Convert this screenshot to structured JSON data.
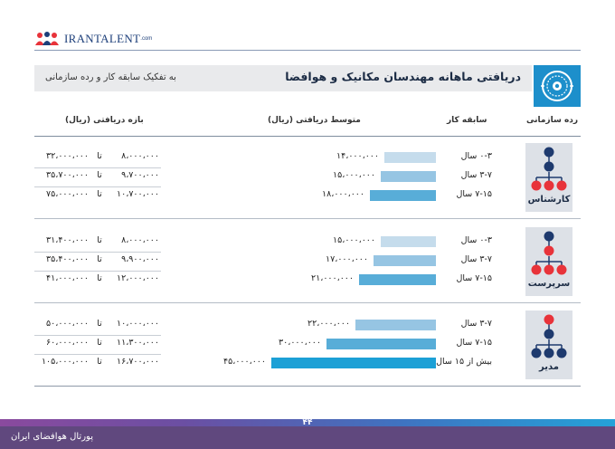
{
  "logo": {
    "text": "IRANTALENT",
    "domain": ".com"
  },
  "title": "دریافتی ماهانه مهندسان مکانیک و هوافضا",
  "subtitle": "به تفکیک سابقه کار و رده سازمانی",
  "title_icon": "turbine-icon",
  "headers": {
    "level": "رده سازمانی",
    "experience": "سابقه کار",
    "average": "متوسط دریافتی (ریال)",
    "range": "بازه دریافتی (ریال)"
  },
  "range_separator": "تا",
  "colors": {
    "light": "#c5dcec",
    "medium": "#96c5e3",
    "dark": "#58add8",
    "strong": "#1ca0d6",
    "navy": "#1e3a6e",
    "red": "#e8333a",
    "accent": "#1d8fcb"
  },
  "chart_data": {
    "type": "bar",
    "orientation": "horizontal",
    "title": "دریافتی ماهانه مهندسان مکانیک و هوافضا",
    "subtitle": "به تفکیک سابقه کار و رده سازمانی",
    "groups": [
      {
        "level": "کارشناس",
        "icon": "org-chart-expert-icon",
        "rows": [
          {
            "experience": "۰-۳ سال",
            "average": 14000000,
            "average_label": "۱۴،۰۰۰،۰۰۰",
            "min": 8000000,
            "min_label": "۸،۰۰۰،۰۰۰",
            "max": 32000000,
            "max_label": "۳۲،۰۰۰،۰۰۰",
            "shade": "light"
          },
          {
            "experience": "۳-۷ سال",
            "average": 15000000,
            "average_label": "۱۵،۰۰۰،۰۰۰",
            "min": 9700000,
            "min_label": "۹،۷۰۰،۰۰۰",
            "max": 35700000,
            "max_label": "۳۵،۷۰۰،۰۰۰",
            "shade": "medium"
          },
          {
            "experience": "۷-۱۵ سال",
            "average": 18000000,
            "average_label": "۱۸،۰۰۰،۰۰۰",
            "min": 10700000,
            "min_label": "۱۰،۷۰۰،۰۰۰",
            "max": 75000000,
            "max_label": "۷۵،۰۰۰،۰۰۰",
            "shade": "dark"
          }
        ]
      },
      {
        "level": "سرپرست",
        "icon": "org-chart-supervisor-icon",
        "rows": [
          {
            "experience": "۰-۳ سال",
            "average": 15000000,
            "average_label": "۱۵،۰۰۰،۰۰۰",
            "min": 8000000,
            "min_label": "۸،۰۰۰،۰۰۰",
            "max": 31400000,
            "max_label": "۳۱،۴۰۰،۰۰۰",
            "shade": "light"
          },
          {
            "experience": "۳-۷ سال",
            "average": 17000000,
            "average_label": "۱۷،۰۰۰،۰۰۰",
            "min": 9900000,
            "min_label": "۹،۹۰۰،۰۰۰",
            "max": 35400000,
            "max_label": "۳۵،۴۰۰،۰۰۰",
            "shade": "medium"
          },
          {
            "experience": "۷-۱۵ سال",
            "average": 21000000,
            "average_label": "۲۱،۰۰۰،۰۰۰",
            "min": 12000000,
            "min_label": "۱۲،۰۰۰،۰۰۰",
            "max": 41000000,
            "max_label": "۴۱،۰۰۰،۰۰۰",
            "shade": "dark"
          }
        ]
      },
      {
        "level": "مدیر",
        "icon": "org-chart-manager-icon",
        "rows": [
          {
            "experience": "۳-۷ سال",
            "average": 22000000,
            "average_label": "۲۲،۰۰۰،۰۰۰",
            "min": 10000000,
            "min_label": "۱۰،۰۰۰،۰۰۰",
            "max": 50000000,
            "max_label": "۵۰،۰۰۰،۰۰۰",
            "shade": "medium"
          },
          {
            "experience": "۷-۱۵ سال",
            "average": 30000000,
            "average_label": "۳۰،۰۰۰،۰۰۰",
            "min": 11300000,
            "min_label": "۱۱،۳۰۰،۰۰۰",
            "max": 60000000,
            "max_label": "۶۰،۰۰۰،۰۰۰",
            "shade": "dark"
          },
          {
            "experience": "بیش از ۱۵ سال",
            "average": 45000000,
            "average_label": "۴۵،۰۰۰،۰۰۰",
            "min": 16700000,
            "min_label": "۱۶،۷۰۰،۰۰۰",
            "max": 105000000,
            "max_label": "۱۰۵،۰۰۰،۰۰۰",
            "shade": "strong"
          }
        ]
      }
    ]
  },
  "footer": {
    "page": "۴۴",
    "portal": "پورتال هوافضای ایران"
  }
}
